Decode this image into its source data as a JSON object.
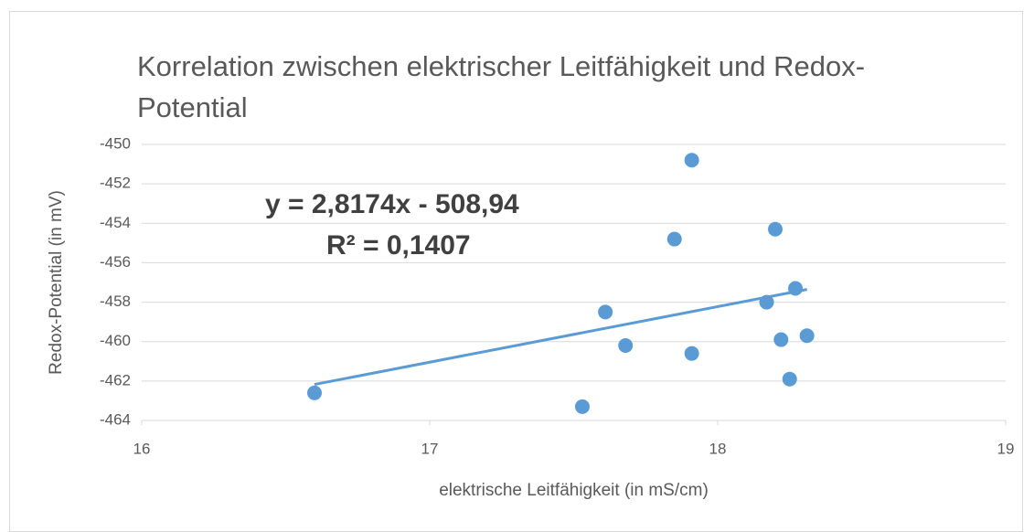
{
  "chart_data": {
    "type": "scatter",
    "title": "Korrelation zwischen elektrischer Leitfähigkeit und Redox-Potential",
    "x_label": "elektrische Leitfähigkeit (in mS/cm)",
    "y_label": "Redox-Potential (in mV)",
    "series": [
      {
        "name": "Redox-Potential",
        "color": "#5b9bd5",
        "x": [
          16.6,
          17.53,
          17.61,
          17.68,
          17.85,
          17.91,
          17.91,
          18.17,
          18.2,
          18.22,
          18.25,
          18.27,
          18.31
        ],
        "values": [
          -462.6,
          -463.3,
          -458.5,
          -460.2,
          -454.8,
          -450.8,
          -460.6,
          -458.0,
          -454.3,
          -459.9,
          -461.9,
          -457.3,
          -459.7
        ]
      }
    ],
    "trendline": {
      "slope": 2.8174,
      "intercept": -508.94,
      "x_range": [
        16.6,
        18.31
      ],
      "color": "#5b9bd5"
    },
    "annotations": [
      "y = 2,8174x - 508,94",
      "R² = 0,1407"
    ],
    "xlim": [
      16,
      19
    ],
    "xticks": [
      16,
      17,
      18,
      19
    ],
    "ylim": [
      -464,
      -450
    ],
    "yticks": [
      -464,
      -462,
      -460,
      -458,
      -456,
      -454,
      -452,
      -450
    ],
    "grid": true
  }
}
